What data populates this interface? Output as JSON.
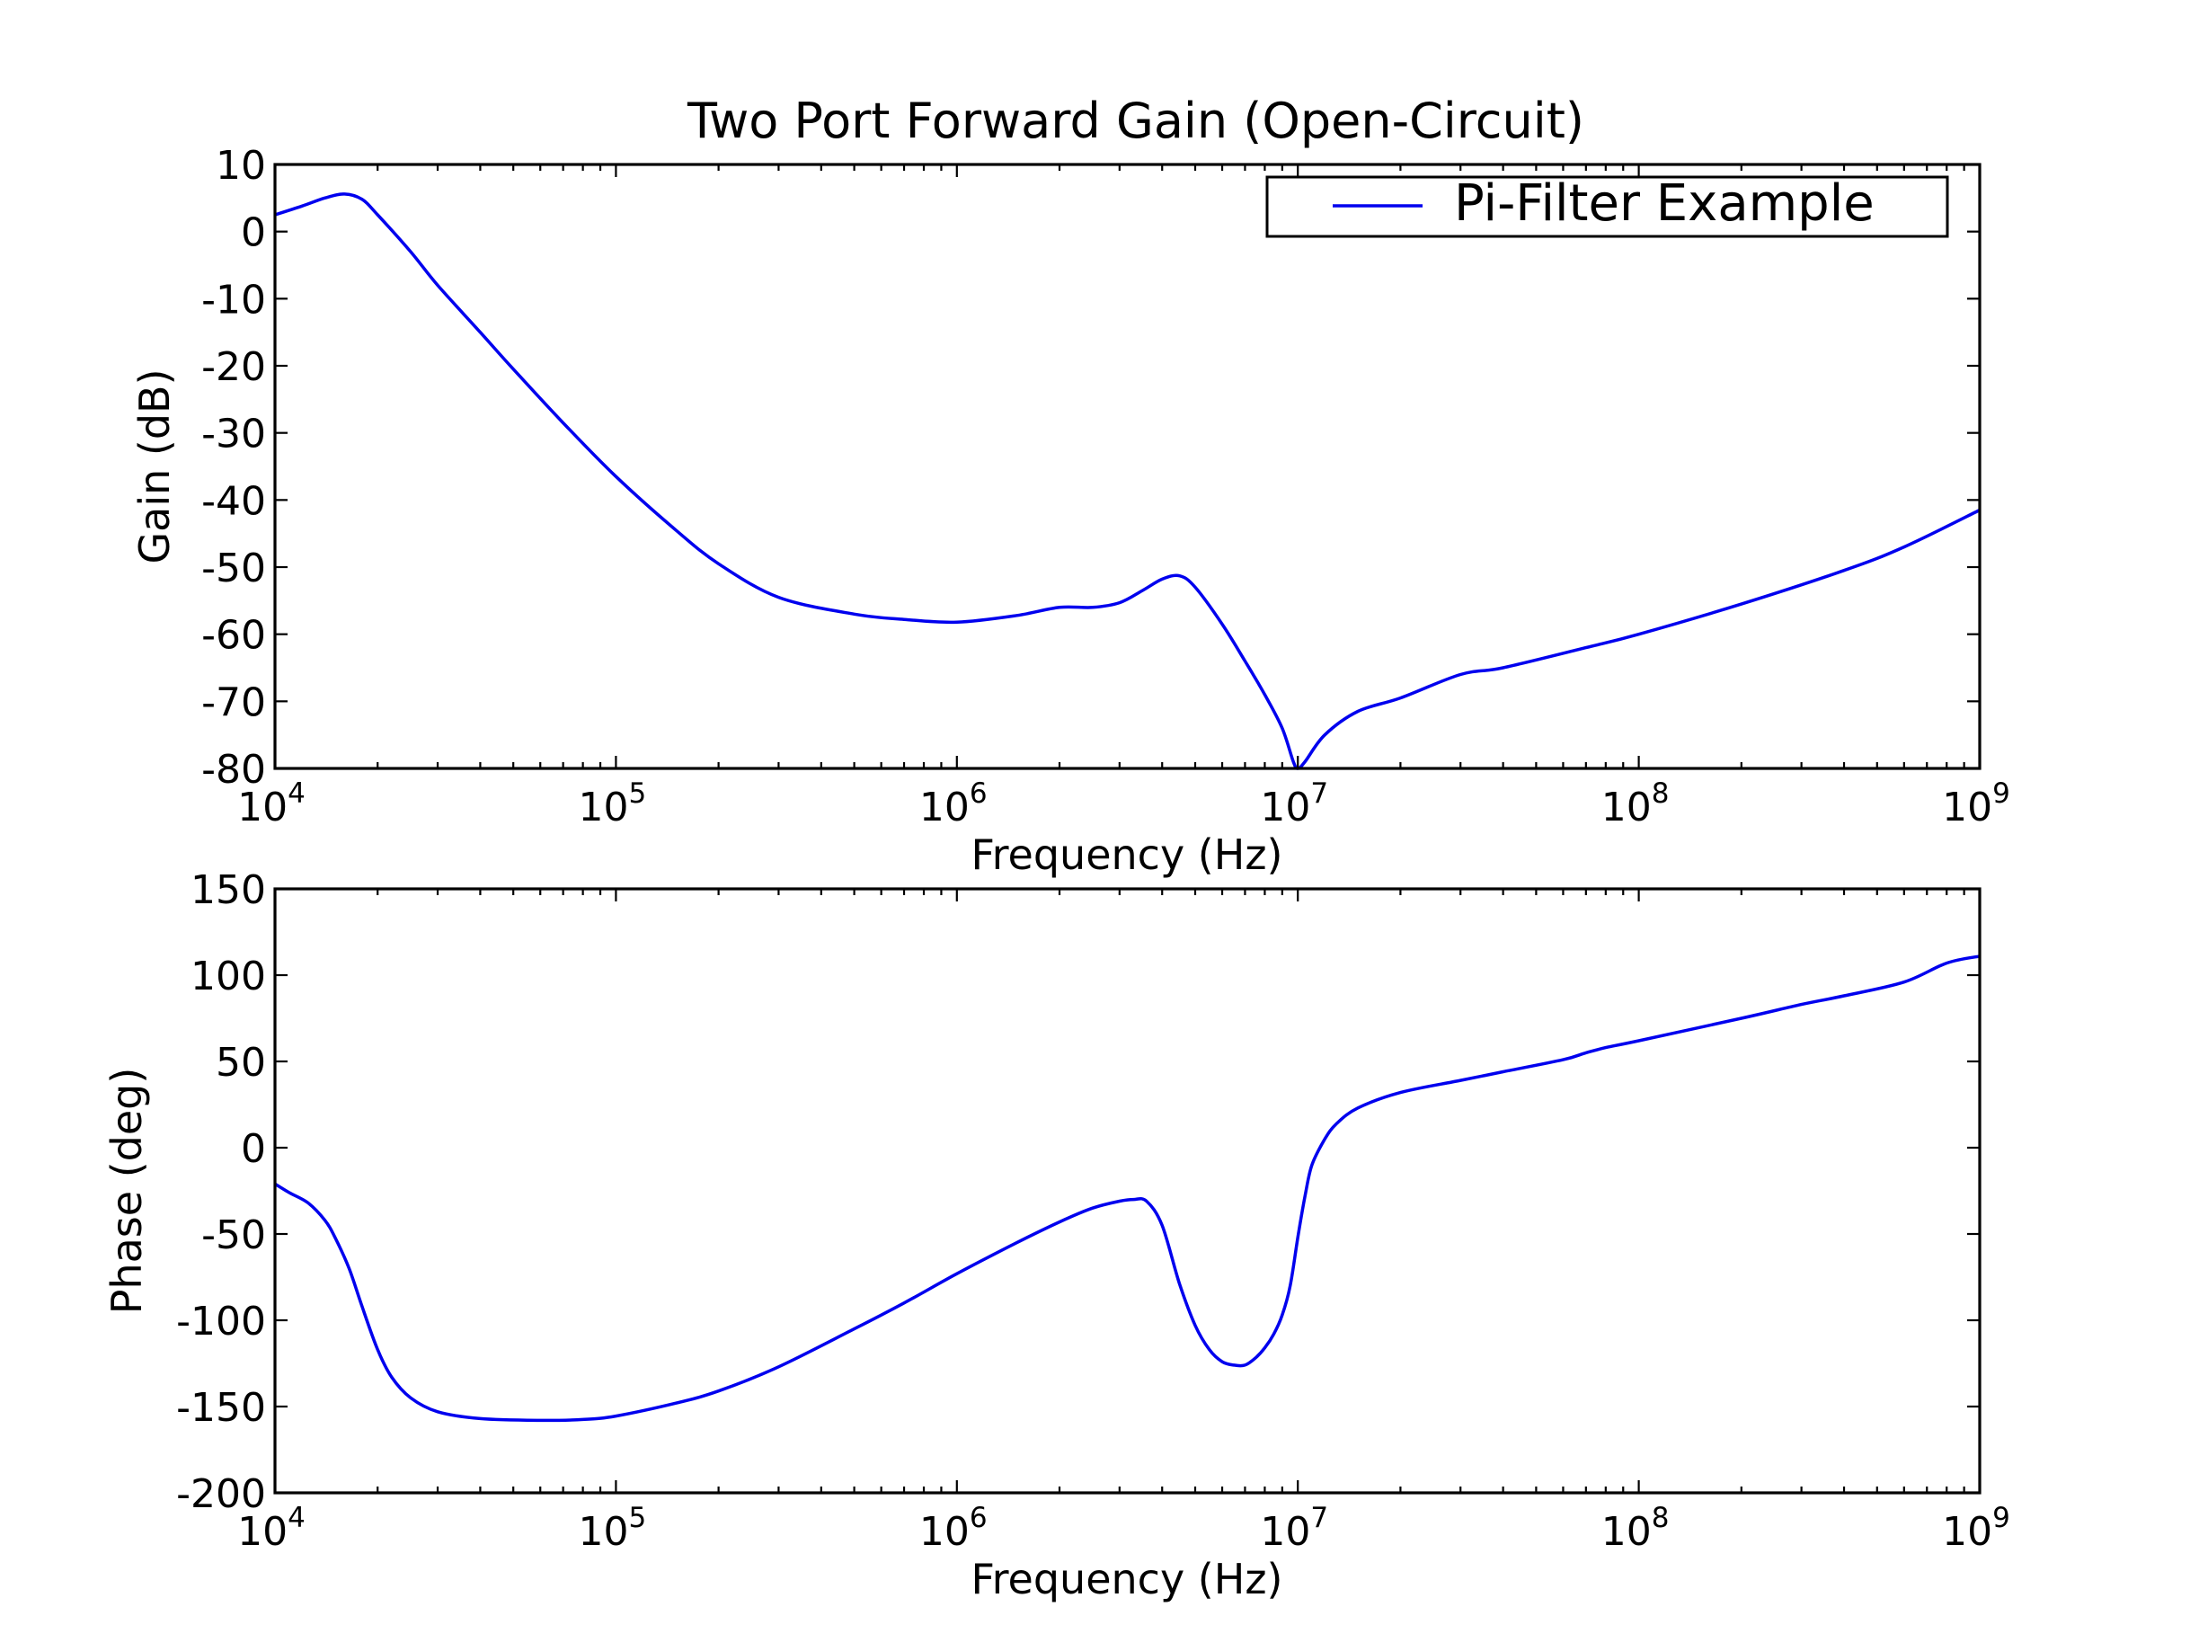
{
  "title": "Two Port Forward Gain (Open-Circuit)",
  "colors": {
    "series": "#0000ee",
    "axes": "#000000",
    "background": "#ffffff"
  },
  "chart_data": [
    {
      "type": "line",
      "title": "Two Port Forward Gain (Open-Circuit)",
      "xlabel": "Frequency (Hz)",
      "ylabel": "Gain (dB)",
      "xscale": "log",
      "xlim": [
        10000,
        1000000000
      ],
      "ylim": [
        -80,
        10
      ],
      "x_ticks": [
        {
          "base": "10",
          "exp": "4"
        },
        {
          "base": "10",
          "exp": "5"
        },
        {
          "base": "10",
          "exp": "6"
        },
        {
          "base": "10",
          "exp": "7"
        },
        {
          "base": "10",
          "exp": "8"
        },
        {
          "base": "10",
          "exp": "9"
        }
      ],
      "y_ticks": [
        "10",
        "0",
        "-10",
        "-20",
        "-30",
        "-40",
        "-50",
        "-60",
        "-70",
        "-80"
      ],
      "grid": false,
      "legend": {
        "position": "top-right",
        "entries": [
          "Pi-Filter Example"
        ]
      },
      "series": [
        {
          "name": "Pi-Filter Example",
          "color": "#0000ee",
          "x": [
            10000,
            12000,
            14000,
            16000,
            18000,
            20000,
            25000,
            30000,
            40000,
            50000,
            70000,
            100000,
            150000,
            200000,
            300000,
            500000,
            700000,
            1000000,
            1500000,
            2000000,
            2500000,
            3000000,
            3500000,
            4000000,
            4500000,
            5000000,
            6000000,
            7000000,
            8000000,
            9000000,
            9700000,
            10000000,
            10500000,
            12000000,
            15000000,
            20000000,
            30000000,
            40000000,
            70000000,
            100000000,
            200000000,
            400000000,
            600000000,
            1000000000
          ],
          "values": [
            2.5,
            3.8,
            5.0,
            5.6,
            4.8,
            2.5,
            -3.0,
            -8.0,
            -15.0,
            -20.5,
            -28.5,
            -36.5,
            -44.5,
            -49.5,
            -54.5,
            -57.0,
            -57.8,
            -58.2,
            -57.2,
            -56.0,
            -56.0,
            -55.3,
            -53.5,
            -51.8,
            -51.3,
            -53.0,
            -58.5,
            -64.0,
            -69.0,
            -74.0,
            -79.0,
            -80.0,
            -79.0,
            -75.0,
            -71.5,
            -69.5,
            -66.0,
            -65.0,
            -62.0,
            -60.0,
            -55.5,
            -50.5,
            -47.0,
            -41.5
          ]
        }
      ]
    },
    {
      "type": "line",
      "xlabel": "Frequency (Hz)",
      "ylabel": "Phase (deg)",
      "xscale": "log",
      "xlim": [
        10000,
        1000000000
      ],
      "ylim": [
        -200,
        150
      ],
      "x_ticks": [
        {
          "base": "10",
          "exp": "4"
        },
        {
          "base": "10",
          "exp": "5"
        },
        {
          "base": "10",
          "exp": "6"
        },
        {
          "base": "10",
          "exp": "7"
        },
        {
          "base": "10",
          "exp": "8"
        },
        {
          "base": "10",
          "exp": "9"
        }
      ],
      "y_ticks": [
        "150",
        "100",
        "50",
        "0",
        "-50",
        "-100",
        "-150",
        "-200"
      ],
      "grid": false,
      "series": [
        {
          "color": "#0000ee",
          "x": [
            10000,
            11000,
            12500,
            14000,
            15000,
            16500,
            18000,
            20000,
            22000,
            25000,
            30000,
            40000,
            60000,
            80000,
            100000,
            150000,
            200000,
            300000,
            500000,
            700000,
            1000000,
            1500000,
            2000000,
            2500000,
            3000000,
            3300000,
            3600000,
            4000000,
            4500000,
            5000000,
            5500000,
            6000000,
            6500000,
            7000000,
            7500000,
            8000000,
            8500000,
            9000000,
            9500000,
            10000000,
            10500000,
            11000000,
            12000000,
            13000000,
            15000000,
            20000000,
            30000000,
            40000000,
            60000000,
            70000000,
            80000000,
            100000000,
            200000000,
            300000000,
            400000000,
            600000000,
            800000000,
            1000000000
          ],
          "values": [
            -21,
            -26,
            -32,
            -42,
            -52,
            -70,
            -92,
            -117,
            -133,
            -145,
            -153,
            -157,
            -158,
            -157.5,
            -155.5,
            -148,
            -141,
            -127,
            -105,
            -90,
            -73,
            -55,
            -43,
            -35,
            -31,
            -30,
            -31,
            -45,
            -79,
            -103,
            -117,
            -124,
            -126,
            -126,
            -122,
            -116,
            -108,
            -97,
            -80,
            -52,
            -28,
            -10,
            5,
            14,
            23,
            32,
            39,
            44,
            51,
            55,
            58,
            62,
            75,
            83,
            88,
            96,
            107,
            111
          ]
        }
      ]
    }
  ]
}
